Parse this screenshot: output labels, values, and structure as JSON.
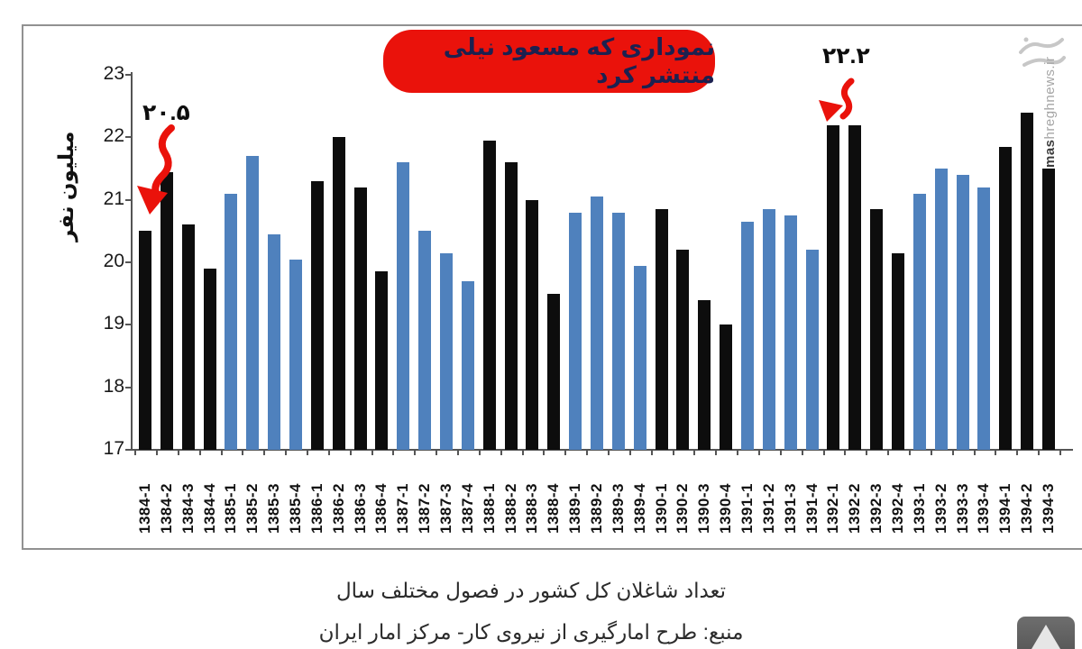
{
  "chart_data": {
    "type": "bar",
    "ylabel": "میلیون نفر",
    "ylim": [
      17,
      23
    ],
    "yticks": [
      17,
      18,
      19,
      20,
      21,
      22,
      23
    ],
    "grid": false,
    "legend": "none",
    "bars": [
      {
        "label": "1384-1",
        "value": 20.5,
        "color": "black"
      },
      {
        "label": "1384-2",
        "value": 21.45,
        "color": "black"
      },
      {
        "label": "1384-3",
        "value": 20.6,
        "color": "black"
      },
      {
        "label": "1384-4",
        "value": 19.9,
        "color": "black"
      },
      {
        "label": "1385-1",
        "value": 21.1,
        "color": "blue"
      },
      {
        "label": "1385-2",
        "value": 21.7,
        "color": "blue"
      },
      {
        "label": "1385-3",
        "value": 20.45,
        "color": "blue"
      },
      {
        "label": "1385-4",
        "value": 20.05,
        "color": "blue"
      },
      {
        "label": "1386-1",
        "value": 21.3,
        "color": "black"
      },
      {
        "label": "1386-2",
        "value": 22.0,
        "color": "black"
      },
      {
        "label": "1386-3",
        "value": 21.2,
        "color": "black"
      },
      {
        "label": "1386-4",
        "value": 19.85,
        "color": "black"
      },
      {
        "label": "1387-1",
        "value": 21.6,
        "color": "blue"
      },
      {
        "label": "1387-2",
        "value": 20.5,
        "color": "blue"
      },
      {
        "label": "1387-3",
        "value": 20.15,
        "color": "blue"
      },
      {
        "label": "1387-4",
        "value": 19.7,
        "color": "blue"
      },
      {
        "label": "1388-1",
        "value": 21.95,
        "color": "black"
      },
      {
        "label": "1388-2",
        "value": 21.6,
        "color": "black"
      },
      {
        "label": "1388-3",
        "value": 21.0,
        "color": "black"
      },
      {
        "label": "1388-4",
        "value": 19.5,
        "color": "black"
      },
      {
        "label": "1389-1",
        "value": 20.8,
        "color": "blue"
      },
      {
        "label": "1389-2",
        "value": 21.05,
        "color": "blue"
      },
      {
        "label": "1389-3",
        "value": 20.8,
        "color": "blue"
      },
      {
        "label": "1389-4",
        "value": 19.95,
        "color": "blue"
      },
      {
        "label": "1390-1",
        "value": 20.85,
        "color": "black"
      },
      {
        "label": "1390-2",
        "value": 20.2,
        "color": "black"
      },
      {
        "label": "1390-3",
        "value": 19.4,
        "color": "black"
      },
      {
        "label": "1390-4",
        "value": 19.0,
        "color": "black"
      },
      {
        "label": "1391-1",
        "value": 20.65,
        "color": "blue"
      },
      {
        "label": "1391-2",
        "value": 20.85,
        "color": "blue"
      },
      {
        "label": "1391-3",
        "value": 20.75,
        "color": "blue"
      },
      {
        "label": "1391-4",
        "value": 20.2,
        "color": "blue"
      },
      {
        "label": "1392-1",
        "value": 22.2,
        "color": "black"
      },
      {
        "label": "1392-2",
        "value": 22.2,
        "color": "black"
      },
      {
        "label": "1392-3",
        "value": 20.85,
        "color": "black"
      },
      {
        "label": "1392-4",
        "value": 20.15,
        "color": "black"
      },
      {
        "label": "1393-1",
        "value": 21.1,
        "color": "blue"
      },
      {
        "label": "1393-2",
        "value": 21.5,
        "color": "blue"
      },
      {
        "label": "1393-3",
        "value": 21.4,
        "color": "blue"
      },
      {
        "label": "1393-4",
        "value": 21.2,
        "color": "blue"
      },
      {
        "label": "1394-1",
        "value": 21.85,
        "color": "black"
      },
      {
        "label": "1394-2",
        "value": 22.4,
        "color": "black"
      },
      {
        "label": "1394-3",
        "value": 21.5,
        "color": "black"
      }
    ]
  },
  "annotations": {
    "red_box_label": "نموداری که مسعود نیلی منتشر کرد",
    "point_low": {
      "label": "۲۰.۵",
      "target": "1384-1"
    },
    "point_high": {
      "label": "۲۲.۲",
      "target": "1392-1"
    }
  },
  "caption": {
    "line1": "تعداد شاغلان کل کشور در فصول مختلف سال",
    "line2": "منبع: طرح امارگیری از نیروی کار- مرکز امار ایران"
  },
  "watermark": {
    "bold_part": "mas",
    "rest_part": "hreghnews.ir",
    "logo": "mashregh-calligraphy-logo"
  },
  "colors": {
    "black_bar": "#0d0d0d",
    "blue_bar": "#4f81bd",
    "annotation_red": "#ea120b",
    "red_box_text": "#1c2150",
    "frame_gray": "#919191"
  }
}
